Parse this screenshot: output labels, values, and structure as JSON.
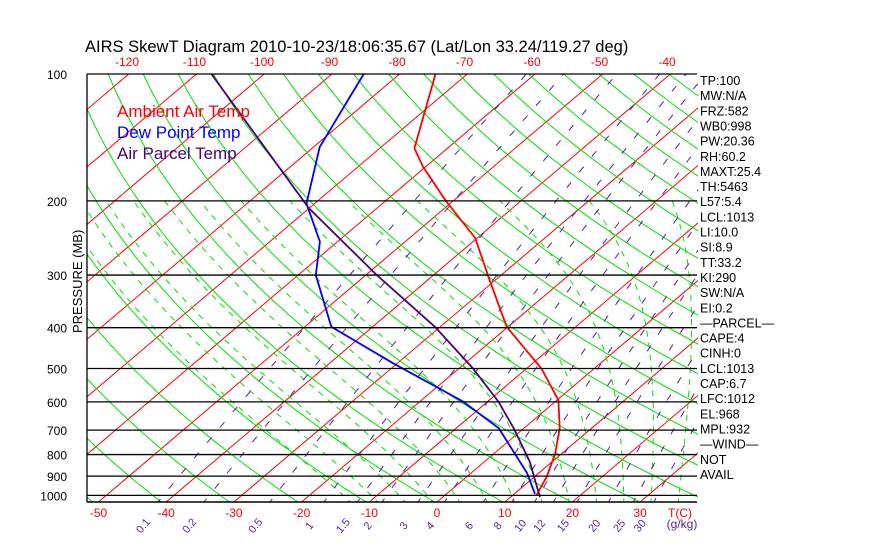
{
  "chart_data": {
    "type": "line",
    "subtype": "skew-t log-p",
    "title": "AIRS SkewT Diagram 2010-10-23/18:06:35.67 (Lat/Lon 33.24/119.27 deg)",
    "ylabel": "PRESSURE (MB)",
    "xlabel": "T(C)",
    "mixing_ratio_label": "(g/kg)",
    "ylim": [
      1050,
      100
    ],
    "pressure_ticks": [
      100,
      200,
      300,
      400,
      500,
      600,
      700,
      800,
      900,
      1000
    ],
    "top_temp_ticks": [
      -120,
      -110,
      -100,
      -90,
      -80,
      -70,
      -60,
      -50,
      -40
    ],
    "bottom_temp_ticks": [
      -50,
      -40,
      -30,
      -20,
      -10,
      0,
      10,
      20,
      30
    ],
    "mixing_ratio_ticks": [
      "0.1",
      "0.2",
      "0.5",
      "1",
      "1.5",
      "2",
      "3",
      "4",
      "6",
      "8",
      "10",
      "12",
      "15",
      "20",
      "25",
      "30"
    ],
    "isotherms": [
      -170,
      -160,
      -150,
      -140,
      -130,
      -120,
      -110,
      -100,
      -90,
      -80,
      -70,
      -60,
      -50,
      -40,
      -30,
      -20,
      -10,
      0,
      10,
      20,
      30,
      40
    ],
    "colors": {
      "temp": "#ff0000",
      "dew": "#0000ff",
      "parcel": "#4b0082",
      "isotherm": "#ff0000",
      "adiabat": "#00e000",
      "mixing": "#5a1aa0",
      "isobar": "#000000"
    },
    "legend": [
      {
        "label": "Ambient Air Temp",
        "color": "#ff0000"
      },
      {
        "label": "Dew Point Temp",
        "color": "#0000ff"
      },
      {
        "label": "Air Parcel Temp",
        "color": "#4b0082"
      }
    ],
    "series": [
      {
        "name": "Ambient Air Temp",
        "color": "#ff0000",
        "p": [
          998,
          903,
          795,
          693,
          594,
          500,
          398,
          311,
          245,
          200,
          166,
          150,
          100
        ],
        "T": [
          13.5,
          11.8,
          9.0,
          5.3,
          0.2,
          -7.8,
          -20.2,
          -30.5,
          -40.3,
          -51.1,
          -60.4,
          -64.9,
          -74.7
        ]
      },
      {
        "name": "Dew Point Temp",
        "color": "#0000ff",
        "p": [
          993,
          886,
          693,
          599,
          486,
          398,
          300,
          250,
          203,
          149,
          113,
          100
        ],
        "T": [
          13.1,
          8.3,
          -3.7,
          -13.6,
          -30.6,
          -46.1,
          -57.4,
          -62.6,
          -71.2,
          -79.1,
          -83.4,
          -85.3
        ]
      },
      {
        "name": "Air Parcel Temp",
        "color": "#4b0082",
        "p": [
          1010,
          954,
          832,
          693,
          599,
          500,
          398,
          300,
          208,
          100
        ],
        "T": [
          14.4,
          12.1,
          6.7,
          -1.5,
          -8.4,
          -17.9,
          -30.8,
          -48.4,
          -70.1,
          -107.8
        ]
      }
    ]
  },
  "indices": [
    "TP:100",
    "MW:N/A",
    "FRZ:582",
    "WB0:998",
    "PW:20.36",
    "RH:60.2",
    "MAXT:25.4",
    "TH:5463",
    "L57:5.4",
    "LCL:1013",
    "LI:10.0",
    "SI:8.9",
    "TT:33.2",
    "KI:290",
    "SW:N/A",
    "EI:0.2",
    "—PARCEL—",
    "CAPE:4",
    "CINH:0",
    "LCL:1013",
    "CAP:6.7",
    "LFC:1012",
    "EL:968",
    "MPL:932",
    "—WIND—",
    "NOT",
    "AVAIL"
  ]
}
